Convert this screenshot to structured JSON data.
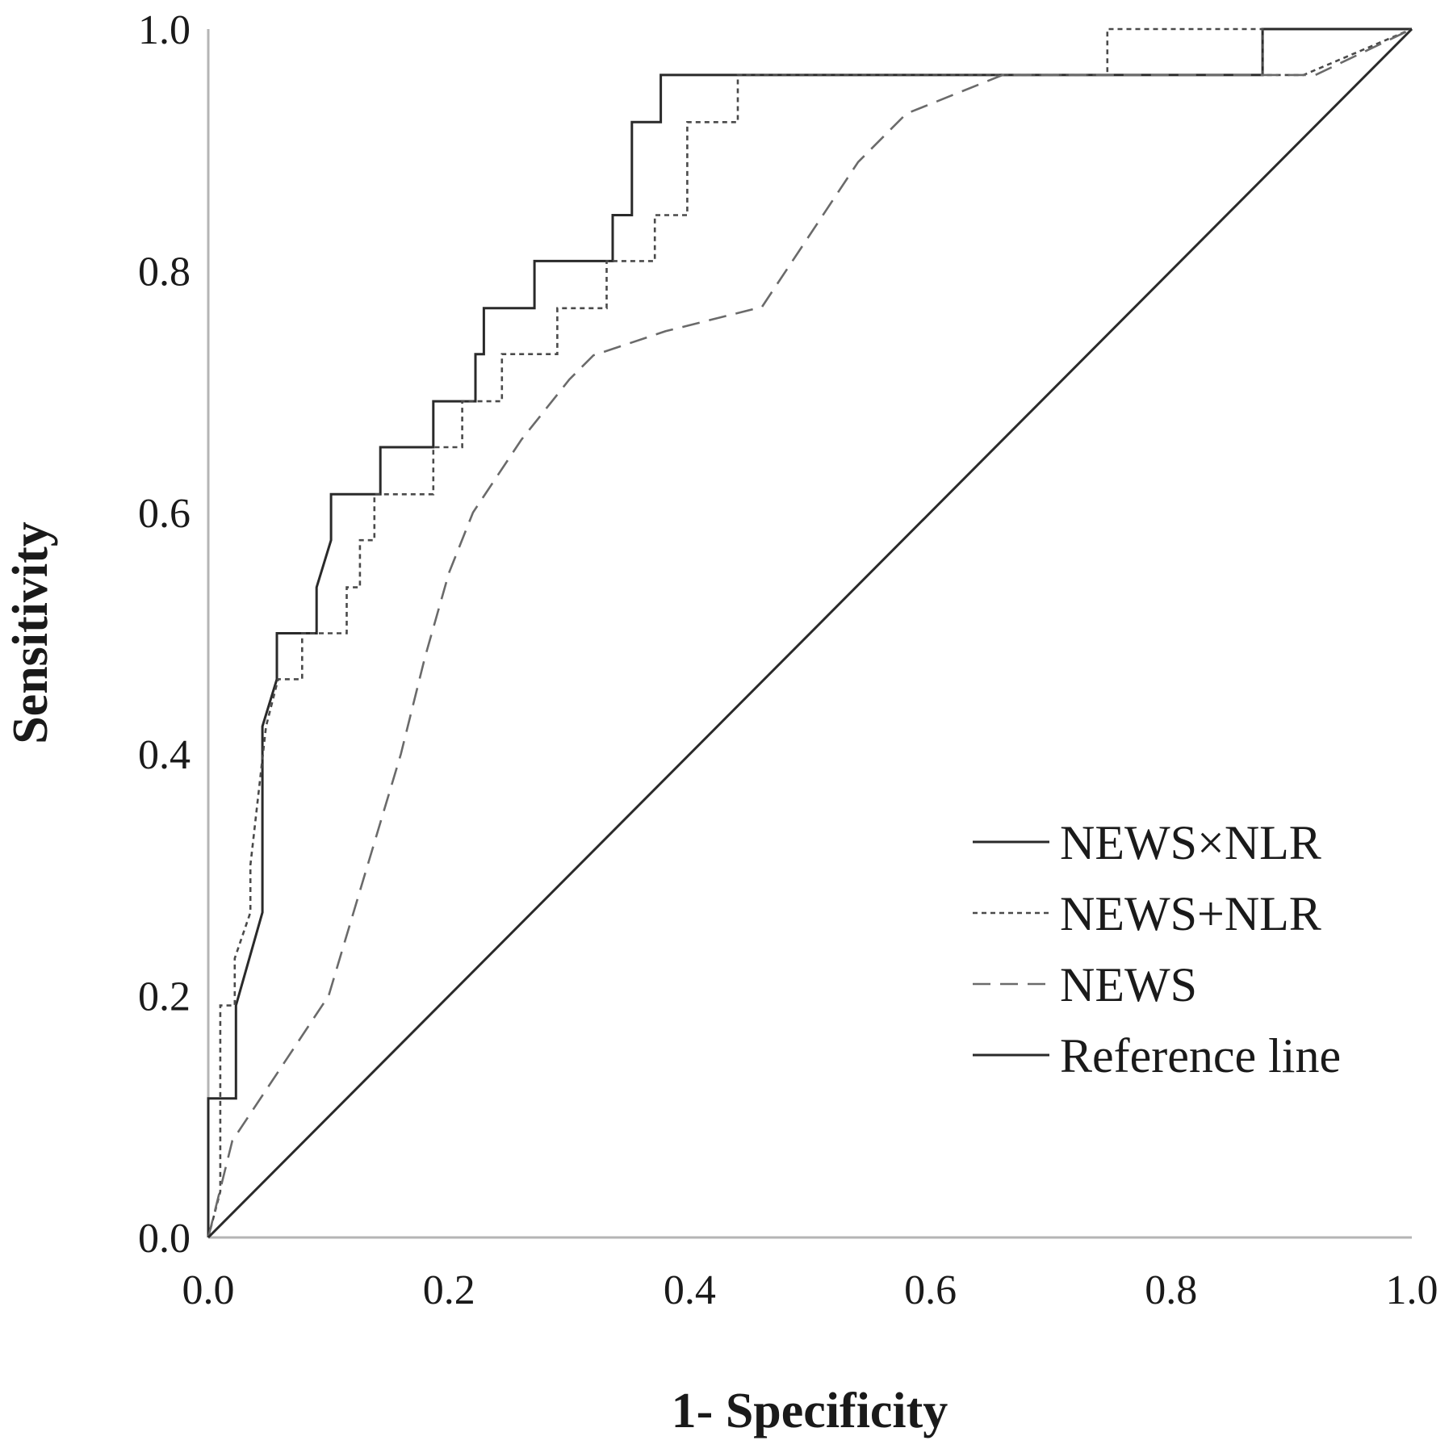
{
  "chart_data": {
    "type": "line",
    "title": "",
    "xlabel": "1- Specificity",
    "ylabel": "Sensitivity",
    "xlim": [
      0,
      1
    ],
    "ylim": [
      0,
      1
    ],
    "x_ticks": [
      "0.0",
      "0.2",
      "0.4",
      "0.6",
      "0.8",
      "1.0"
    ],
    "y_ticks": [
      "0.0",
      "0.2",
      "0.4",
      "0.6",
      "0.8",
      "1.0"
    ],
    "grid": false,
    "legend_position": "lower-right",
    "series": [
      {
        "name": "NEWS×NLR",
        "style": "solid",
        "color": "#2a2a2a",
        "x": [
          0,
          0,
          0.023,
          0.023,
          0.045,
          0.045,
          0.057,
          0.057,
          0.09,
          0.09,
          0.102,
          0.102,
          0.114,
          0.114,
          0.143,
          0.143,
          0.187,
          0.187,
          0.222,
          0.222,
          0.229,
          0.229,
          0.271,
          0.271,
          0.336,
          0.336,
          0.352,
          0.352,
          0.376,
          0.376,
          0.876,
          0.876,
          1.0
        ],
        "y": [
          0,
          0.115,
          0.115,
          0.192,
          0.269,
          0.423,
          0.462,
          0.5,
          0.5,
          0.538,
          0.577,
          0.615,
          0.615,
          0.615,
          0.615,
          0.654,
          0.654,
          0.692,
          0.692,
          0.731,
          0.731,
          0.769,
          0.769,
          0.808,
          0.808,
          0.846,
          0.846,
          0.923,
          0.923,
          0.962,
          0.962,
          1.0,
          1.0
        ]
      },
      {
        "name": "NEWS+NLR",
        "style": "dotted",
        "color": "#4a4a4a",
        "x": [
          0,
          0.01,
          0.01,
          0.022,
          0.022,
          0.035,
          0.035,
          0.048,
          0.048,
          0.058,
          0.058,
          0.078,
          0.078,
          0.115,
          0.115,
          0.126,
          0.126,
          0.138,
          0.138,
          0.187,
          0.187,
          0.211,
          0.211,
          0.244,
          0.244,
          0.29,
          0.29,
          0.331,
          0.331,
          0.371,
          0.371,
          0.398,
          0.398,
          0.44,
          0.44,
          0.747,
          0.747,
          0.876,
          0.876,
          0.91,
          1.0
        ],
        "y": [
          0,
          0.038,
          0.192,
          0.192,
          0.231,
          0.269,
          0.308,
          0.423,
          0.423,
          0.462,
          0.462,
          0.462,
          0.5,
          0.5,
          0.538,
          0.538,
          0.577,
          0.577,
          0.615,
          0.615,
          0.654,
          0.654,
          0.692,
          0.692,
          0.731,
          0.731,
          0.769,
          0.769,
          0.808,
          0.808,
          0.846,
          0.846,
          0.923,
          0.923,
          0.962,
          0.962,
          1.0,
          1.0,
          0.962,
          0.962,
          1.0
        ]
      },
      {
        "name": "NEWS",
        "style": "dashed",
        "color": "#6a6a6a",
        "x": [
          0,
          0.02,
          0.06,
          0.1,
          0.13,
          0.16,
          0.18,
          0.2,
          0.22,
          0.26,
          0.3,
          0.32,
          0.38,
          0.42,
          0.46,
          0.5,
          0.54,
          0.58,
          0.66,
          0.75,
          0.87,
          0.92,
          1.0
        ],
        "y": [
          0,
          0.08,
          0.14,
          0.2,
          0.3,
          0.4,
          0.48,
          0.55,
          0.6,
          0.66,
          0.71,
          0.73,
          0.75,
          0.76,
          0.77,
          0.83,
          0.89,
          0.93,
          0.962,
          0.962,
          0.962,
          0.962,
          1.0
        ]
      },
      {
        "name": "Reference line",
        "style": "solid",
        "color": "#2a2a2a",
        "x": [
          0,
          1
        ],
        "y": [
          0,
          1
        ]
      }
    ]
  }
}
